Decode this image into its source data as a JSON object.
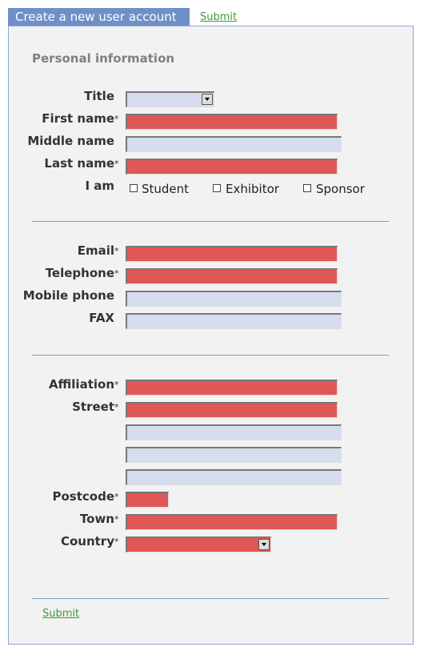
{
  "header": {
    "tab": "Create a new user account",
    "submit": "Submit"
  },
  "form": {
    "section_title": "Personal information",
    "required_mark": "*",
    "personal": {
      "title": "Title",
      "first_name": "First name",
      "middle_name": "Middle name",
      "last_name": "Last name",
      "i_am": "I am",
      "options": [
        "Student",
        "Exhibitor",
        "Sponsor"
      ]
    },
    "contact": {
      "email": "Email",
      "telephone": "Telephone",
      "mobile": "Mobile phone",
      "fax": "FAX"
    },
    "address": {
      "affiliation": "Affiliation",
      "street": "Street",
      "postcode": "Postcode",
      "town": "Town",
      "country": "Country"
    }
  },
  "footer": {
    "submit": "Submit"
  }
}
